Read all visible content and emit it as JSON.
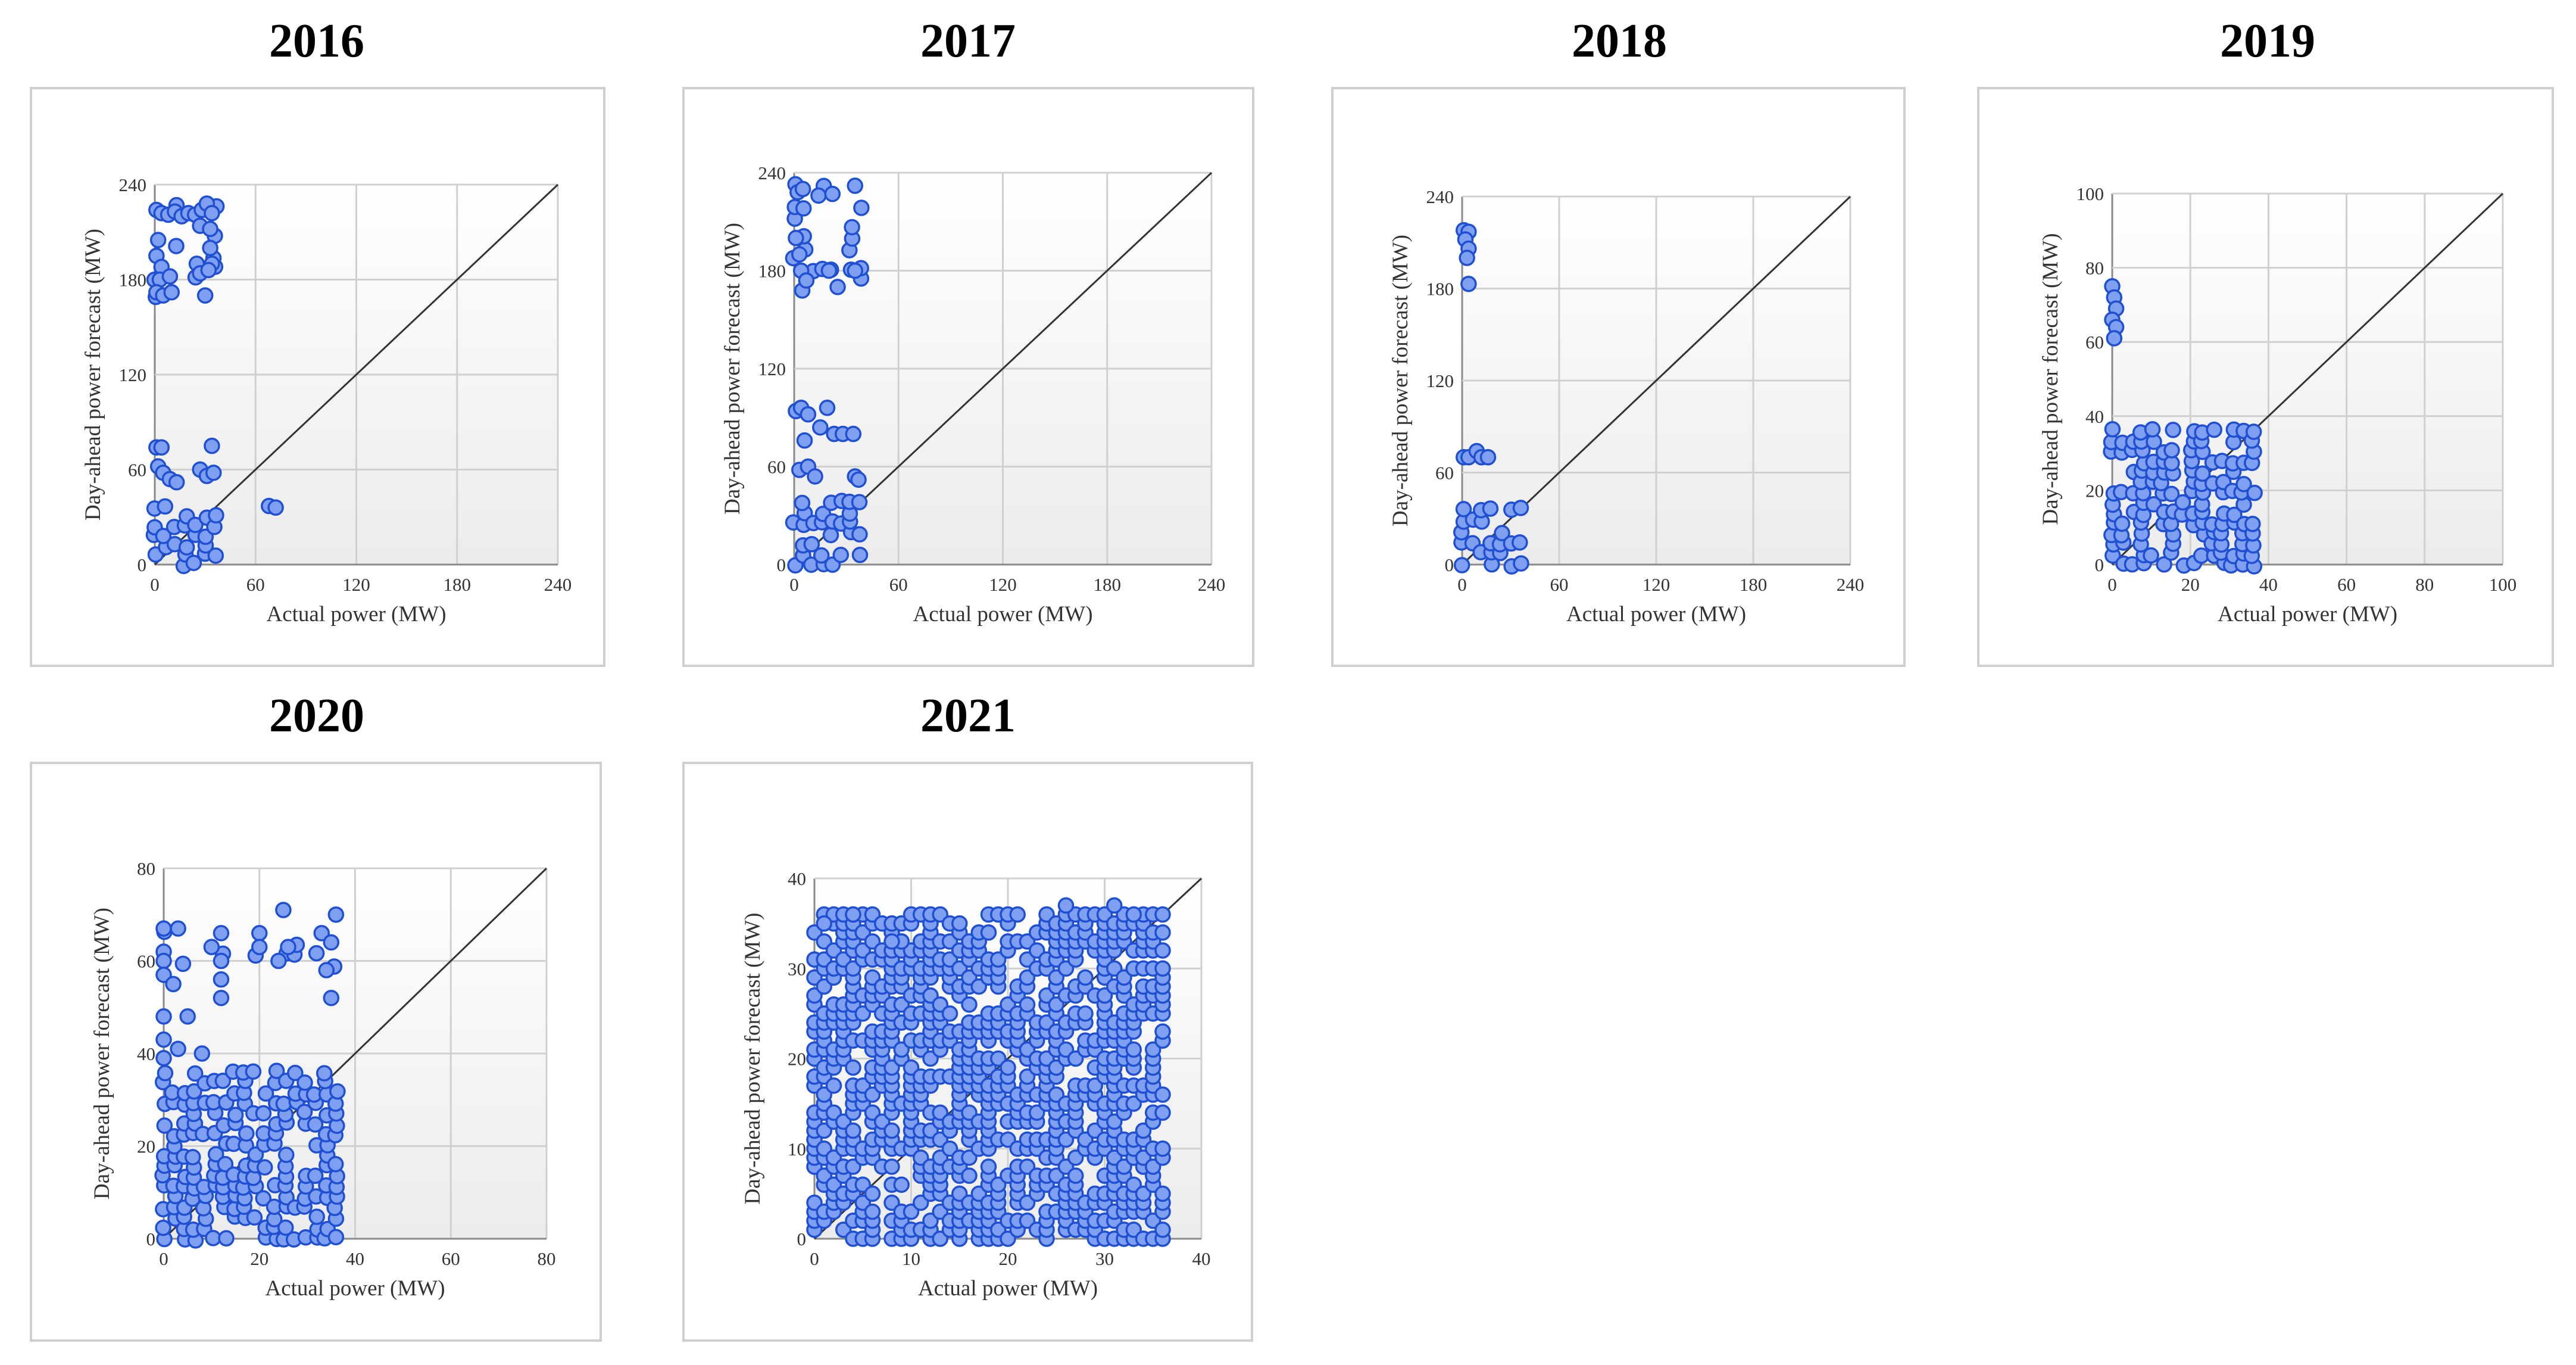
{
  "chart_data": [
    {
      "type": "scatter",
      "title": "2016",
      "xlabel": "Actual power (MW)",
      "ylabel": "Day-ahead power forecast (MW)",
      "xlim": [
        0,
        240
      ],
      "ylim": [
        0,
        240
      ],
      "xticks": [
        "0",
        "60",
        "120",
        "180",
        "240"
      ],
      "yticks": [
        "0",
        "60",
        "120",
        "180",
        "240"
      ],
      "grid": true,
      "reference_line": "y = x",
      "colors": {
        "marker_fill": "#7f9ff0",
        "marker_edge": "#1f4fd2"
      },
      "regions": [
        {
          "x": [
            0,
            36
          ],
          "y": [
            0,
            36
          ],
          "density": 0.5
        },
        {
          "x": [
            0,
            36
          ],
          "y": [
            168,
            226
          ],
          "density": 0.18
        },
        {
          "x": [
            0,
            36
          ],
          "y": [
            52,
            74
          ],
          "density": 0.004
        }
      ],
      "points": [
        {
          "x": 1,
          "y": 224
        },
        {
          "x": 4,
          "y": 222
        },
        {
          "x": 8,
          "y": 221
        },
        {
          "x": 12,
          "y": 223
        },
        {
          "x": 16,
          "y": 220
        },
        {
          "x": 20,
          "y": 222
        },
        {
          "x": 24,
          "y": 221
        },
        {
          "x": 28,
          "y": 224
        },
        {
          "x": 31,
          "y": 228
        },
        {
          "x": 34,
          "y": 222
        },
        {
          "x": 27,
          "y": 214
        },
        {
          "x": 33,
          "y": 212
        },
        {
          "x": 2,
          "y": 205
        },
        {
          "x": 1,
          "y": 195
        },
        {
          "x": 4,
          "y": 188
        },
        {
          "x": 3,
          "y": 180
        },
        {
          "x": 1,
          "y": 172
        },
        {
          "x": 5,
          "y": 170
        },
        {
          "x": 9,
          "y": 182
        },
        {
          "x": 10,
          "y": 172
        },
        {
          "x": 25,
          "y": 190
        },
        {
          "x": 27,
          "y": 184
        },
        {
          "x": 30,
          "y": 170
        },
        {
          "x": 33,
          "y": 200
        },
        {
          "x": 34,
          "y": 190
        },
        {
          "x": 32,
          "y": 186
        },
        {
          "x": 1,
          "y": 74
        },
        {
          "x": 4,
          "y": 74
        },
        {
          "x": 34,
          "y": 75
        },
        {
          "x": 2,
          "y": 62
        },
        {
          "x": 5,
          "y": 58
        },
        {
          "x": 9,
          "y": 54
        },
        {
          "x": 13,
          "y": 52
        },
        {
          "x": 27,
          "y": 60
        },
        {
          "x": 31,
          "y": 56
        },
        {
          "x": 35,
          "y": 58
        },
        {
          "x": 68,
          "y": 37
        },
        {
          "x": 72,
          "y": 36
        }
      ]
    },
    {
      "type": "scatter",
      "title": "2017",
      "xlabel": "Actual power (MW)",
      "ylabel": "Day-ahead power forecast (MW)",
      "xlim": [
        0,
        240
      ],
      "ylim": [
        0,
        240
      ],
      "xticks": [
        "0",
        "60",
        "120",
        "180",
        "240"
      ],
      "yticks": [
        "0",
        "60",
        "120",
        "180",
        "240"
      ],
      "grid": true,
      "reference_line": "y = x",
      "colors": {
        "marker_fill": "#7f9ff0",
        "marker_edge": "#1f4fd2"
      },
      "regions": [
        {
          "x": [
            0,
            38
          ],
          "y": [
            0,
            38
          ],
          "density": 0.5
        },
        {
          "x": [
            0,
            38
          ],
          "y": [
            168,
            232
          ],
          "density": 0.2
        }
      ],
      "points": [
        {
          "x": 2,
          "y": 228
        },
        {
          "x": 5,
          "y": 230
        },
        {
          "x": 14,
          "y": 226
        },
        {
          "x": 22,
          "y": 227
        },
        {
          "x": 35,
          "y": 232
        },
        {
          "x": 1,
          "y": 200
        },
        {
          "x": 3,
          "y": 190
        },
        {
          "x": 4,
          "y": 180
        },
        {
          "x": 7,
          "y": 174
        },
        {
          "x": 20,
          "y": 180
        },
        {
          "x": 25,
          "y": 170
        },
        {
          "x": 35,
          "y": 180
        },
        {
          "x": 1,
          "y": 94
        },
        {
          "x": 4,
          "y": 96
        },
        {
          "x": 8,
          "y": 92
        },
        {
          "x": 19,
          "y": 96
        },
        {
          "x": 6,
          "y": 76
        },
        {
          "x": 15,
          "y": 84
        },
        {
          "x": 23,
          "y": 80
        },
        {
          "x": 28,
          "y": 80
        },
        {
          "x": 34,
          "y": 80
        },
        {
          "x": 3,
          "y": 58
        },
        {
          "x": 8,
          "y": 60
        },
        {
          "x": 12,
          "y": 54
        },
        {
          "x": 35,
          "y": 54
        },
        {
          "x": 37,
          "y": 52
        }
      ]
    },
    {
      "type": "scatter",
      "title": "2018",
      "xlabel": "Actual power (MW)",
      "ylabel": "Day-ahead power forecast (MW)",
      "xlim": [
        0,
        240
      ],
      "ylim": [
        0,
        240
      ],
      "xticks": [
        "0",
        "60",
        "120",
        "180",
        "240"
      ],
      "yticks": [
        "0",
        "60",
        "120",
        "180",
        "240"
      ],
      "grid": true,
      "reference_line": "y = x",
      "colors": {
        "marker_fill": "#7f9ff0",
        "marker_edge": "#1f4fd2"
      },
      "regions": [
        {
          "x": [
            0,
            36
          ],
          "y": [
            0,
            36
          ],
          "density": 0.5
        }
      ],
      "points": [
        {
          "x": 1,
          "y": 218
        },
        {
          "x": 4,
          "y": 217
        },
        {
          "x": 2,
          "y": 212
        },
        {
          "x": 4,
          "y": 206
        },
        {
          "x": 3,
          "y": 200
        },
        {
          "x": 4,
          "y": 183
        },
        {
          "x": 1,
          "y": 70
        },
        {
          "x": 4,
          "y": 70
        },
        {
          "x": 9,
          "y": 74
        },
        {
          "x": 12,
          "y": 70
        },
        {
          "x": 16,
          "y": 70
        }
      ]
    },
    {
      "type": "scatter",
      "title": "2019",
      "xlabel": "Actual power (MW)",
      "ylabel": "Day-ahead power forecast (MW)",
      "xlim": [
        0,
        100
      ],
      "ylim": [
        0,
        100
      ],
      "xticks": [
        "0",
        "20",
        "40",
        "60",
        "80",
        "100"
      ],
      "yticks": [
        "0",
        "20",
        "40",
        "60",
        "80",
        "100"
      ],
      "grid": true,
      "reference_line": "y = x",
      "colors": {
        "marker_fill": "#7f9ff0",
        "marker_edge": "#1f4fd2"
      },
      "regions": [
        {
          "x": [
            0,
            36
          ],
          "y": [
            0,
            36
          ],
          "density": 0.6
        }
      ],
      "points": [
        {
          "x": 0,
          "y": 75
        },
        {
          "x": 0.5,
          "y": 72
        },
        {
          "x": 1,
          "y": 69
        },
        {
          "x": 0,
          "y": 66
        },
        {
          "x": 1,
          "y": 64
        },
        {
          "x": 0.5,
          "y": 61
        }
      ]
    },
    {
      "type": "scatter",
      "title": "2020",
      "xlabel": "Actual power (MW)",
      "ylabel": "Day-ahead power forecast (MW)",
      "xlim": [
        0,
        80
      ],
      "ylim": [
        0,
        80
      ],
      "xticks": [
        "0",
        "20",
        "40",
        "60",
        "80"
      ],
      "yticks": [
        "0",
        "20",
        "40",
        "60",
        "80"
      ],
      "grid": true,
      "reference_line": "y = x",
      "colors": {
        "marker_fill": "#7f9ff0",
        "marker_edge": "#1f4fd2"
      },
      "regions": [
        {
          "x": [
            0,
            36
          ],
          "y": [
            0,
            36
          ],
          "density": 0.6
        },
        {
          "x": [
            0,
            36
          ],
          "y": [
            59,
            66
          ],
          "density": 0.12
        }
      ],
      "points": [
        {
          "x": 25,
          "y": 71
        },
        {
          "x": 36,
          "y": 70
        },
        {
          "x": 0,
          "y": 67
        },
        {
          "x": 3,
          "y": 67
        },
        {
          "x": 12,
          "y": 66
        },
        {
          "x": 20,
          "y": 66
        },
        {
          "x": 33,
          "y": 66
        },
        {
          "x": 0,
          "y": 62
        },
        {
          "x": 10,
          "y": 63
        },
        {
          "x": 20,
          "y": 63
        },
        {
          "x": 26,
          "y": 63
        },
        {
          "x": 35,
          "y": 64
        },
        {
          "x": 0,
          "y": 60
        },
        {
          "x": 12,
          "y": 60
        },
        {
          "x": 24,
          "y": 60
        },
        {
          "x": 34,
          "y": 58
        },
        {
          "x": 0,
          "y": 57
        },
        {
          "x": 2,
          "y": 55
        },
        {
          "x": 12,
          "y": 56
        },
        {
          "x": 12,
          "y": 52
        },
        {
          "x": 35,
          "y": 52
        },
        {
          "x": 0,
          "y": 48
        },
        {
          "x": 5,
          "y": 48
        },
        {
          "x": 0,
          "y": 43
        },
        {
          "x": 3,
          "y": 41
        },
        {
          "x": 8,
          "y": 40
        },
        {
          "x": 0,
          "y": 39
        }
      ]
    },
    {
      "type": "scatter",
      "title": "2021",
      "xlabel": "Actual power (MW)",
      "ylabel": "Day-ahead power forecast (MW)",
      "xlim": [
        0,
        40
      ],
      "ylim": [
        0,
        40
      ],
      "xticks": [
        "0",
        "10",
        "20",
        "30",
        "40"
      ],
      "yticks": [
        "0",
        "10",
        "20",
        "30",
        "40"
      ],
      "grid": true,
      "reference_line": "y = x",
      "colors": {
        "marker_fill": "#7f9ff0",
        "marker_edge": "#1f4fd2"
      },
      "regions": [
        {
          "x": [
            0,
            36
          ],
          "y": [
            0,
            36
          ],
          "density": 0.55,
          "quantized": 1
        }
      ],
      "points": [
        {
          "x": 26,
          "y": 37
        },
        {
          "x": 31,
          "y": 37
        },
        {
          "x": 33,
          "y": 36
        },
        {
          "x": 9,
          "y": 33
        },
        {
          "x": 8,
          "y": 33
        },
        {
          "x": 1,
          "y": 35
        },
        {
          "x": 4,
          "y": 36
        }
      ]
    }
  ]
}
